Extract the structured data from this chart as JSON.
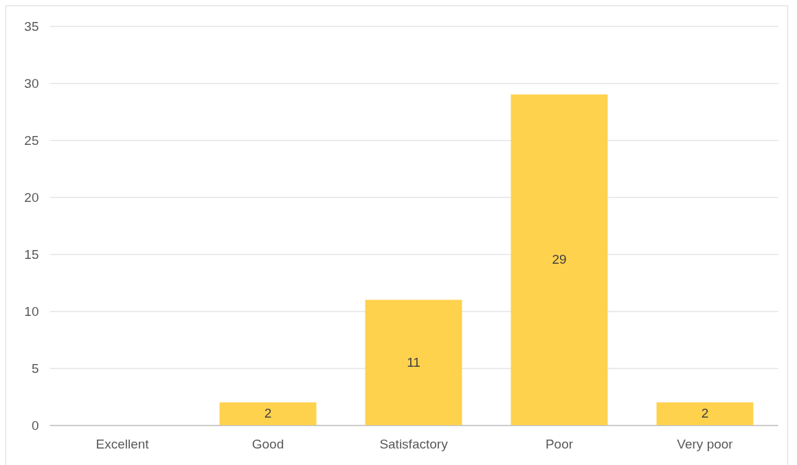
{
  "chart_data": {
    "type": "bar",
    "categories": [
      "Excellent",
      "Good",
      "Satisfactory",
      "Poor",
      "Very poor"
    ],
    "values": [
      0,
      2,
      11,
      29,
      2
    ],
    "color": "#ffd24e",
    "ylim": [
      0,
      35
    ],
    "yticks": [
      0,
      5,
      10,
      15,
      20,
      25,
      30,
      35
    ],
    "grid": "y",
    "value_labels": [
      null,
      "2",
      "11",
      "29",
      "2"
    ]
  }
}
